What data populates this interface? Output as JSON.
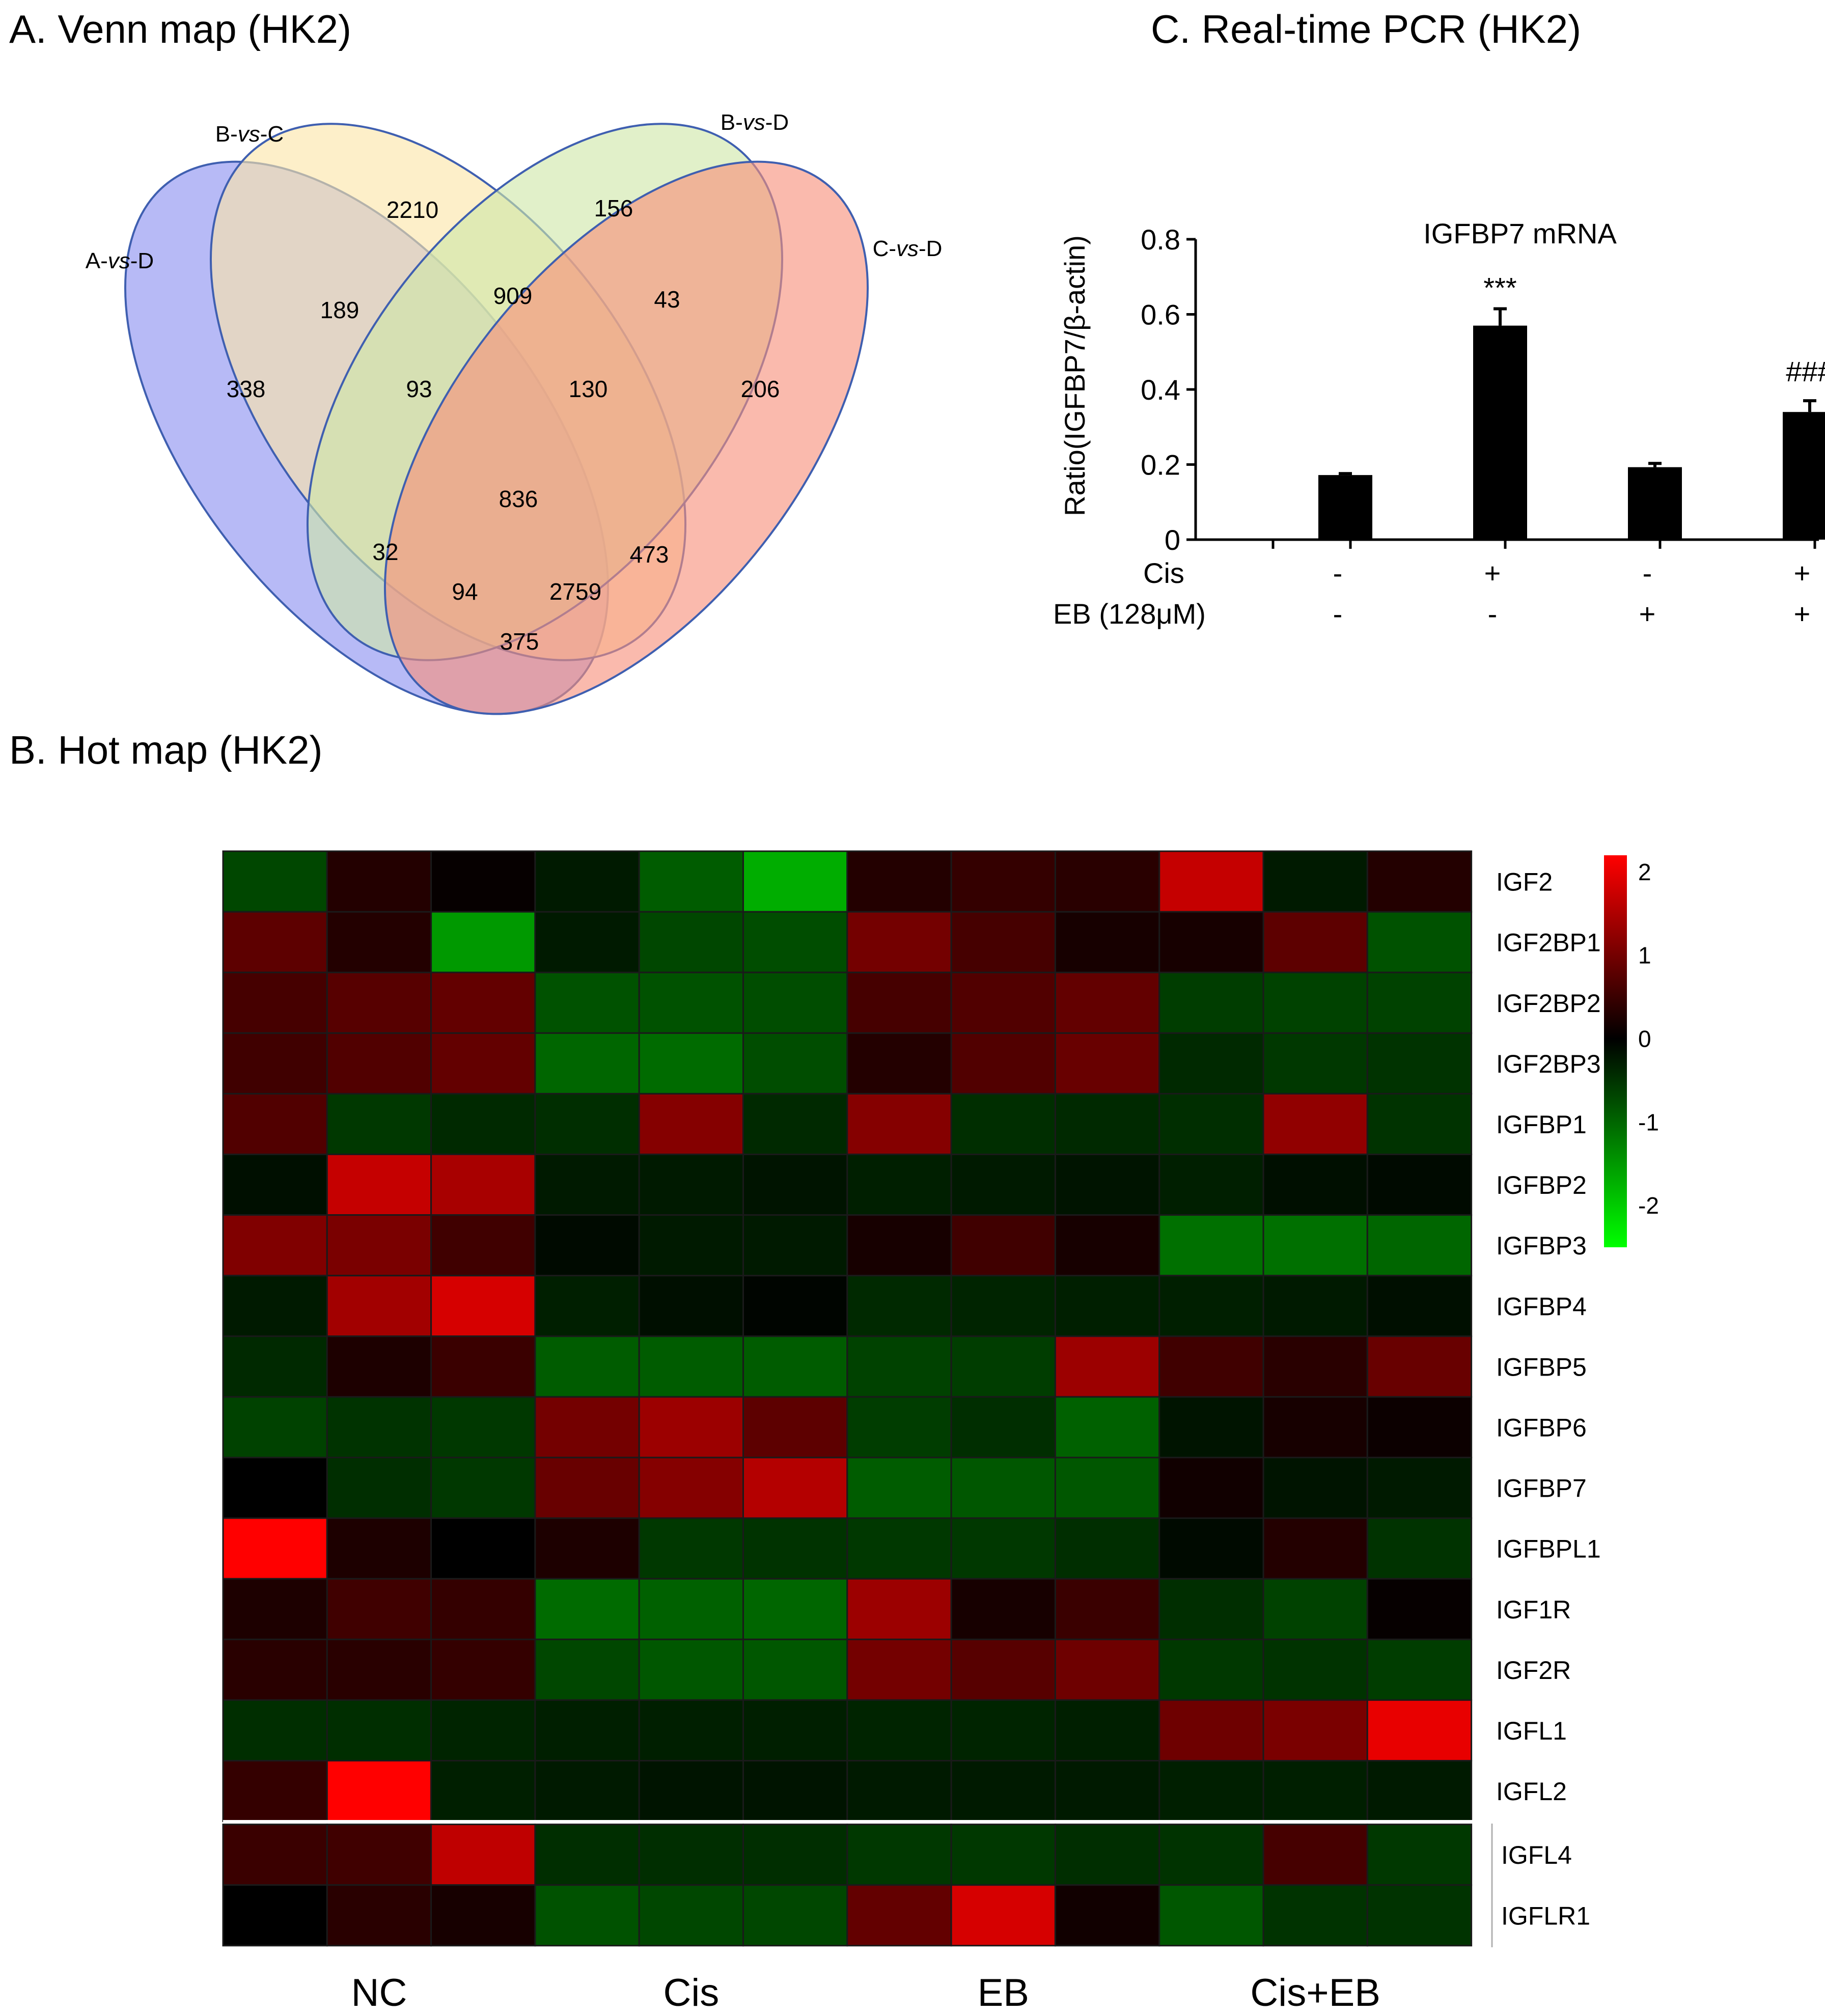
{
  "panels": {
    "venn_title": "A. Venn map (HK2)",
    "heatmap_title": "B. Hot map (HK2)",
    "pcr_title": "C. Real-time PCR (HK2)"
  },
  "chart_data": [
    {
      "type": "venn",
      "title": "A. Venn map (HK2)",
      "sets": [
        {
          "name": "A-vs-D",
          "prefix": "A-",
          "italic": "vs",
          "suffix": "-D",
          "color": "#8a8ff0"
        },
        {
          "name": "B-vs-C",
          "prefix": "B-",
          "italic": "vs",
          "suffix": "-C",
          "color": "#fbe5a8"
        },
        {
          "name": "B-vs-D",
          "prefix": "B-",
          "italic": "vs",
          "suffix": "-D",
          "color": "#cfe6a8"
        },
        {
          "name": "C-vs-D",
          "prefix": "C-",
          "italic": "vs",
          "suffix": "-D",
          "color": "#f78f7a"
        }
      ],
      "regions": [
        {
          "sets": [
            "A-vs-D"
          ],
          "value": 338
        },
        {
          "sets": [
            "B-vs-C"
          ],
          "value": 2210
        },
        {
          "sets": [
            "B-vs-D"
          ],
          "value": 156
        },
        {
          "sets": [
            "C-vs-D"
          ],
          "value": 206
        },
        {
          "sets": [
            "A-vs-D",
            "B-vs-C"
          ],
          "value": 189
        },
        {
          "sets": [
            "B-vs-C",
            "B-vs-D"
          ],
          "value": 909
        },
        {
          "sets": [
            "B-vs-D",
            "C-vs-D"
          ],
          "value": 43
        },
        {
          "sets": [
            "A-vs-D",
            "B-vs-C",
            "B-vs-D"
          ],
          "value": 93
        },
        {
          "sets": [
            "B-vs-C",
            "B-vs-D",
            "C-vs-D"
          ],
          "value": 130
        },
        {
          "sets": [
            "A-vs-D",
            "B-vs-C",
            "B-vs-D",
            "C-vs-D"
          ],
          "value": 836
        },
        {
          "sets": [
            "A-vs-D",
            "B-vs-D"
          ],
          "value": 32
        },
        {
          "sets": [
            "B-vs-C",
            "C-vs-D"
          ],
          "value": 473
        },
        {
          "sets": [
            "A-vs-D",
            "B-vs-D",
            "C-vs-D"
          ],
          "value": 94
        },
        {
          "sets": [
            "A-vs-D",
            "B-vs-C",
            "C-vs-D"
          ],
          "value": 2759
        },
        {
          "sets": [
            "A-vs-D",
            "C-vs-D"
          ],
          "value": 375
        }
      ]
    },
    {
      "type": "heatmap",
      "title": "B. Hot map (HK2)",
      "rows": [
        "IGF2",
        "IGF2BP1",
        "IGF2BP2",
        "IGF2BP3",
        "IGFBP1",
        "IGFBP2",
        "IGFBP3",
        "IGFBP4",
        "IGFBP5",
        "IGFBP6",
        "IGFBP7",
        "IGFBPL1",
        "IGF1R",
        "IGF2R",
        "IGFL1",
        "IGFL2",
        "IGFL4",
        "IGFLR1"
      ],
      "groups": [
        "NC",
        "Cis",
        "EB",
        "Cis+EB"
      ],
      "columns_per_group": 3,
      "colorbar": {
        "min": -2.5,
        "max": 2.2,
        "ticks": [
          2,
          1,
          0,
          -1,
          -2
        ],
        "low": "#00ff00",
        "mid": "#000000",
        "high": "#ff0000"
      },
      "values": [
        [
          -0.7,
          0.3,
          0.05,
          -0.25,
          -0.9,
          -1.7,
          0.3,
          0.45,
          0.35,
          1.7,
          -0.25,
          0.3
        ],
        [
          0.8,
          0.3,
          -1.5,
          -0.25,
          -0.7,
          -0.75,
          1.0,
          0.6,
          0.2,
          0.2,
          0.8,
          -0.8
        ],
        [
          0.6,
          0.75,
          0.85,
          -0.8,
          -0.8,
          -0.75,
          0.6,
          0.7,
          0.85,
          -0.6,
          -0.65,
          -0.65
        ],
        [
          0.55,
          0.7,
          0.85,
          -1.0,
          -1.05,
          -0.75,
          0.3,
          0.7,
          0.9,
          -0.4,
          -0.55,
          -0.5
        ],
        [
          0.7,
          -0.55,
          -0.4,
          -0.45,
          1.15,
          -0.4,
          1.15,
          -0.45,
          -0.4,
          -0.45,
          1.25,
          -0.5
        ],
        [
          -0.15,
          1.7,
          1.45,
          -0.25,
          -0.25,
          -0.2,
          -0.3,
          -0.25,
          -0.2,
          -0.3,
          -0.15,
          -0.1
        ],
        [
          1.1,
          1.05,
          0.55,
          -0.1,
          -0.25,
          -0.25,
          0.2,
          0.55,
          0.2,
          -1.1,
          -1.1,
          -1.0
        ],
        [
          -0.25,
          1.4,
          1.85,
          -0.3,
          -0.15,
          -0.05,
          -0.4,
          -0.35,
          -0.3,
          -0.3,
          -0.25,
          -0.15
        ],
        [
          -0.4,
          0.25,
          0.5,
          -0.9,
          -0.9,
          -0.9,
          -0.65,
          -0.6,
          1.35,
          0.55,
          0.35,
          0.9
        ],
        [
          -0.65,
          -0.5,
          -0.55,
          1.0,
          1.35,
          0.8,
          -0.6,
          -0.45,
          -0.95,
          -0.2,
          0.2,
          0.1
        ],
        [
          0.0,
          -0.45,
          -0.55,
          0.9,
          1.15,
          1.55,
          -0.9,
          -0.85,
          -0.85,
          0.15,
          -0.2,
          -0.25
        ],
        [
          2.2,
          0.25,
          0.0,
          0.25,
          -0.55,
          -0.5,
          -0.55,
          -0.55,
          -0.45,
          -0.1,
          0.3,
          -0.5
        ],
        [
          0.25,
          0.55,
          0.45,
          -1.05,
          -0.95,
          -1.0,
          1.35,
          0.2,
          0.5,
          -0.45,
          -0.65,
          0.05
        ],
        [
          0.35,
          0.35,
          0.45,
          -0.7,
          -0.85,
          -0.85,
          1.0,
          0.75,
          0.95,
          -0.55,
          -0.5,
          -0.6
        ],
        [
          -0.45,
          -0.45,
          -0.35,
          -0.3,
          -0.3,
          -0.3,
          -0.35,
          -0.35,
          -0.3,
          0.95,
          1.05,
          2.0
        ],
        [
          0.45,
          2.2,
          -0.3,
          -0.25,
          -0.2,
          -0.2,
          -0.25,
          -0.25,
          -0.25,
          -0.3,
          -0.3,
          -0.25
        ],
        [
          0.5,
          0.55,
          1.65,
          -0.45,
          -0.45,
          -0.45,
          -0.55,
          -0.55,
          -0.45,
          -0.5,
          0.6,
          -0.55
        ],
        [
          0.0,
          0.35,
          0.2,
          -0.8,
          -0.7,
          -0.7,
          0.85,
          1.85,
          0.15,
          -0.85,
          -0.5,
          -0.5
        ]
      ]
    },
    {
      "type": "bar",
      "title": "C. Real-time PCR (HK2)",
      "subtitle": "IGFBP7 mRNA",
      "ylabel": "Ratio(IGFBP7/β-actin)",
      "ylim": [
        0,
        0.8
      ],
      "yticks": [
        "0",
        "0.2",
        "0.4",
        "0.6",
        "0.8"
      ],
      "ytick_values": [
        0,
        0.2,
        0.4,
        0.6,
        0.8
      ],
      "values": [
        0.172,
        0.57,
        0.193,
        0.34
      ],
      "errors": [
        0.004,
        0.045,
        0.01,
        0.03
      ],
      "annotations": [
        "",
        "***",
        "",
        "###"
      ],
      "factors": [
        {
          "name": "Cis",
          "signs": [
            "-",
            "+",
            "-",
            "+"
          ]
        },
        {
          "name": "EB (128μM)",
          "signs": [
            "-",
            "-",
            "+",
            "+"
          ]
        }
      ]
    }
  ]
}
